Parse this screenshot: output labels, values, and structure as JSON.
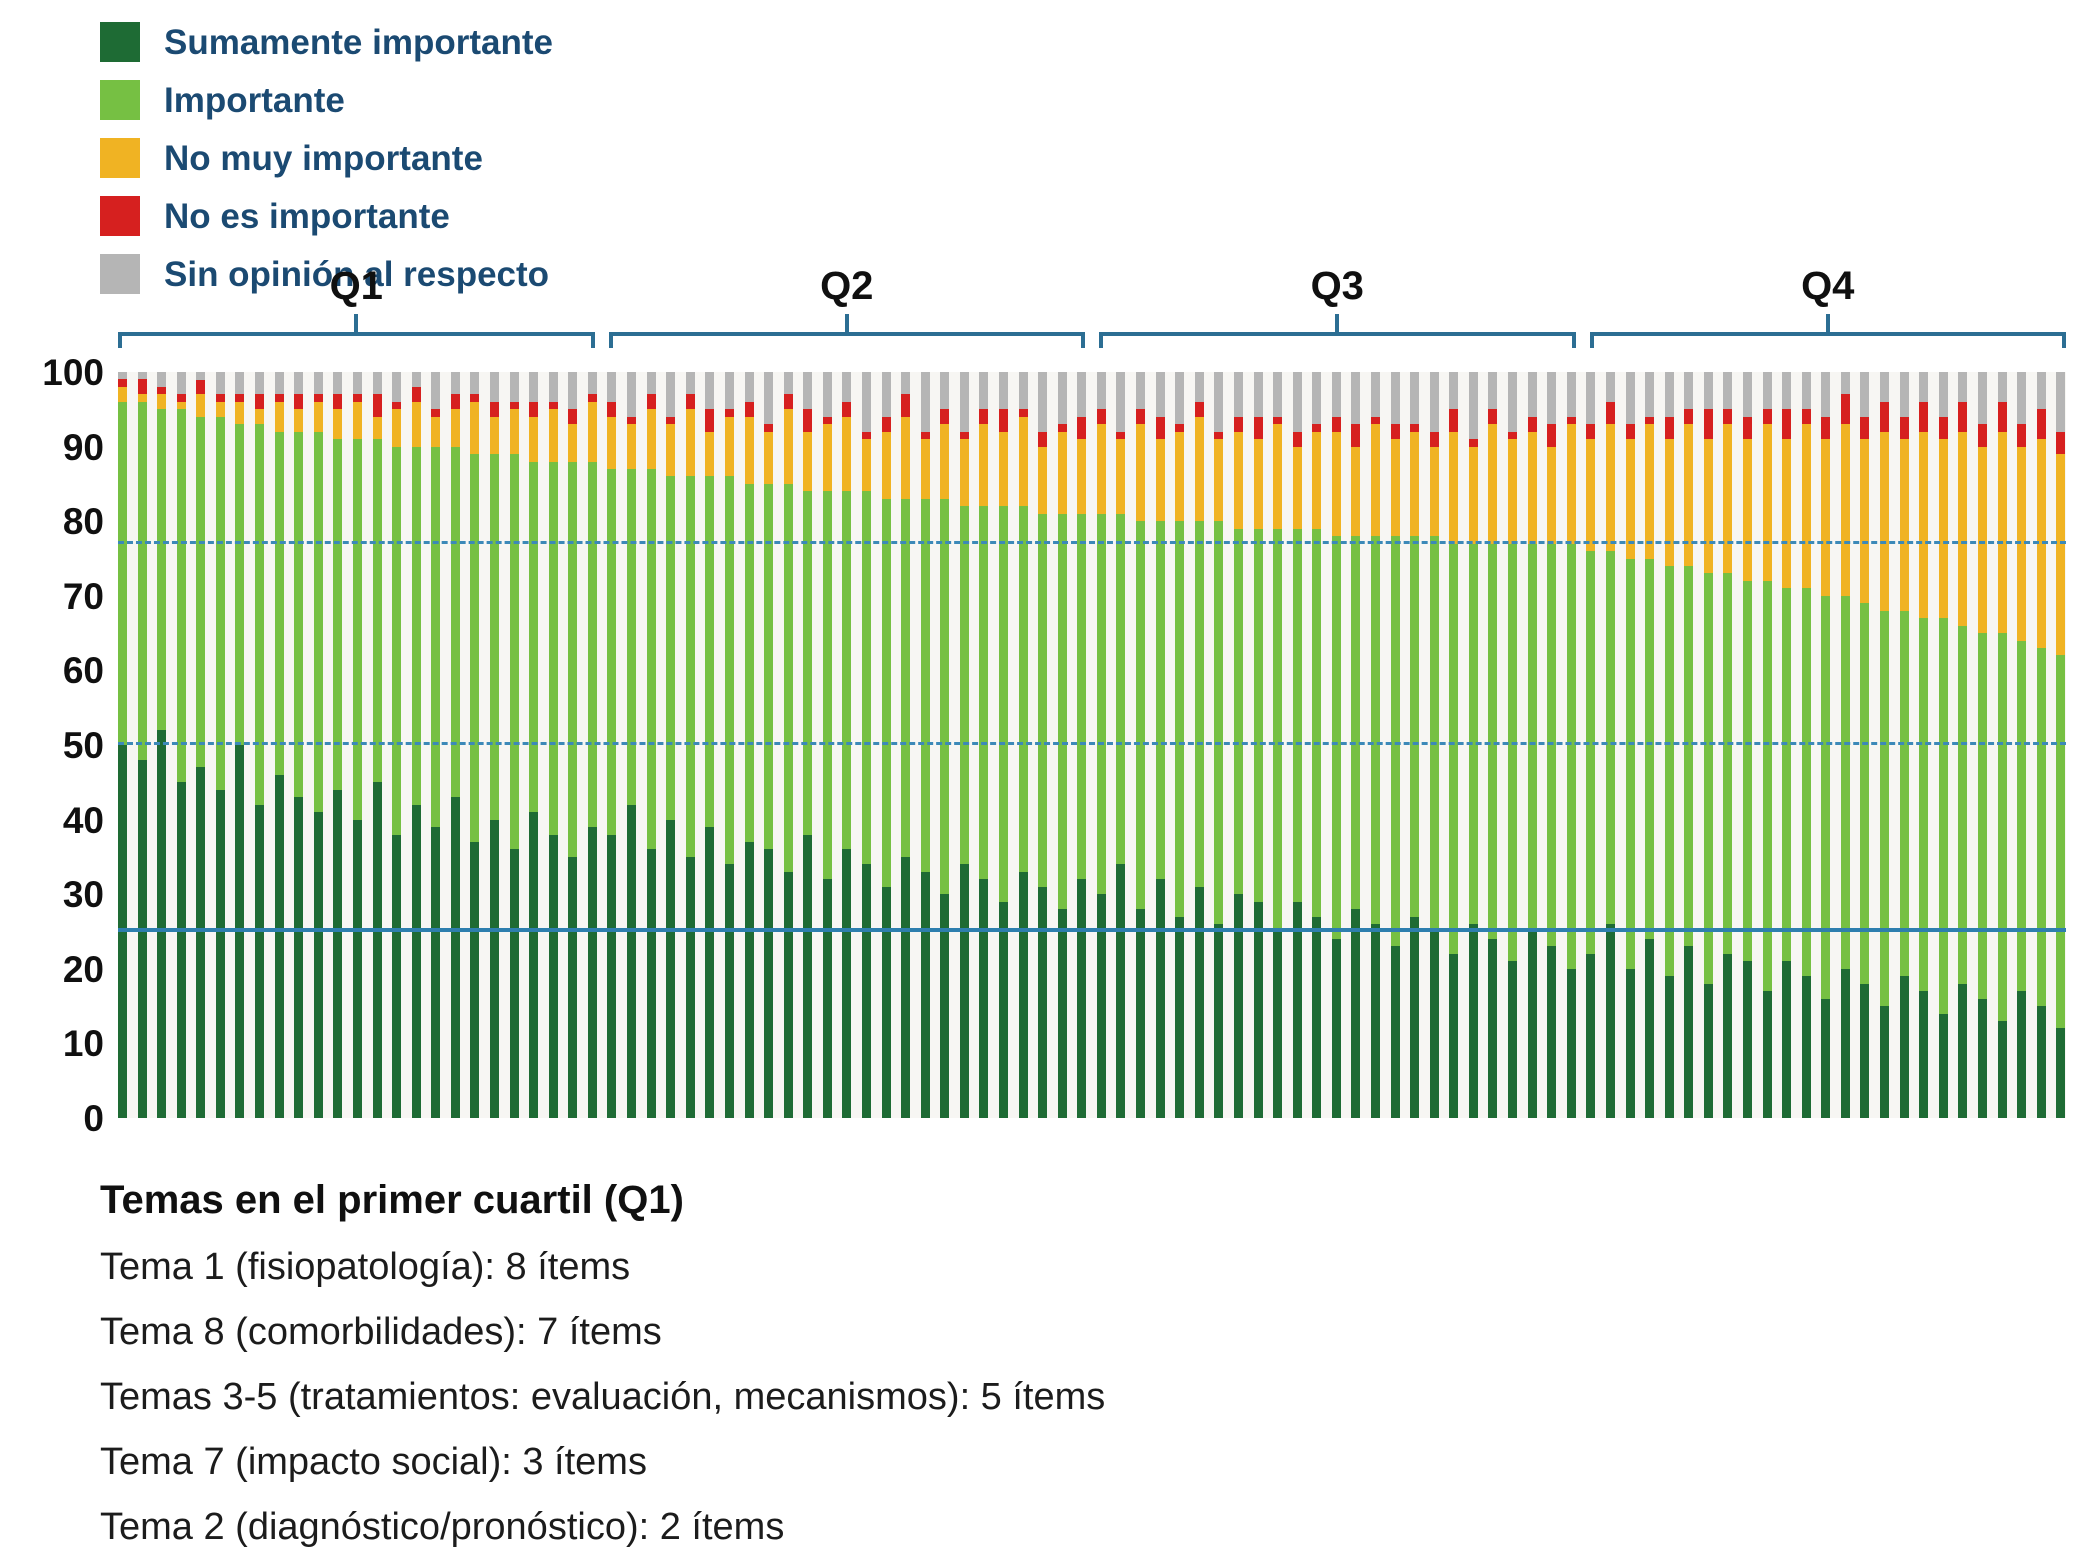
{
  "legend": {
    "items": [
      {
        "label": "Sumamente importante",
        "color": "#1e6b34"
      },
      {
        "label": "Importante",
        "color": "#76c043"
      },
      {
        "label": "No muy importante",
        "color": "#f0b323"
      },
      {
        "label": "No es importante",
        "color": "#d6201f"
      },
      {
        "label": "Sin opinión al respecto",
        "color": "#b5b5b5"
      }
    ]
  },
  "chart_data": {
    "type": "bar",
    "stacked": true,
    "unit": "percent",
    "n_bars": 100,
    "bars_per_quartile": 25,
    "quartiles": [
      "Q1",
      "Q2",
      "Q3",
      "Q4"
    ],
    "series_order": [
      "Sumamente importante",
      "Importante",
      "No muy importante",
      "No es importante",
      "Sin opinión al respecto"
    ],
    "ylim": [
      0,
      100
    ],
    "y_ticks": [
      0,
      10,
      20,
      30,
      40,
      50,
      60,
      70,
      80,
      90,
      100
    ],
    "reference_lines": [
      {
        "y": 77,
        "style": "dashed",
        "color": "#3c89b8"
      },
      {
        "y": 50,
        "style": "dashed",
        "color": "#3c89b8"
      },
      {
        "y": 25,
        "style": "solid",
        "color": "#2e7fae"
      }
    ],
    "bars": [
      [
        50,
        46,
        2,
        1,
        1
      ],
      [
        48,
        48,
        1,
        2,
        1
      ],
      [
        52,
        43,
        2,
        1,
        2
      ],
      [
        45,
        50,
        1,
        1,
        3
      ],
      [
        47,
        47,
        3,
        2,
        1
      ],
      [
        44,
        50,
        2,
        1,
        3
      ],
      [
        50,
        43,
        3,
        1,
        3
      ],
      [
        42,
        51,
        2,
        2,
        3
      ],
      [
        46,
        46,
        4,
        1,
        3
      ],
      [
        43,
        49,
        3,
        2,
        3
      ],
      [
        41,
        51,
        4,
        1,
        3
      ],
      [
        44,
        47,
        4,
        2,
        3
      ],
      [
        40,
        51,
        5,
        1,
        3
      ],
      [
        45,
        46,
        3,
        3,
        3
      ],
      [
        38,
        52,
        5,
        1,
        4
      ],
      [
        42,
        48,
        6,
        2,
        2
      ],
      [
        39,
        51,
        4,
        1,
        5
      ],
      [
        43,
        47,
        5,
        2,
        3
      ],
      [
        37,
        52,
        7,
        1,
        3
      ],
      [
        40,
        49,
        5,
        2,
        4
      ],
      [
        36,
        53,
        6,
        1,
        4
      ],
      [
        41,
        47,
        6,
        2,
        4
      ],
      [
        38,
        50,
        7,
        1,
        4
      ],
      [
        35,
        53,
        5,
        2,
        5
      ],
      [
        39,
        49,
        8,
        1,
        3
      ],
      [
        38,
        49,
        7,
        2,
        4
      ],
      [
        42,
        45,
        6,
        1,
        6
      ],
      [
        36,
        51,
        8,
        2,
        3
      ],
      [
        40,
        46,
        7,
        1,
        6
      ],
      [
        35,
        51,
        9,
        2,
        3
      ],
      [
        39,
        47,
        6,
        3,
        5
      ],
      [
        34,
        52,
        8,
        1,
        5
      ],
      [
        37,
        48,
        9,
        2,
        4
      ],
      [
        36,
        49,
        7,
        1,
        7
      ],
      [
        33,
        52,
        10,
        2,
        3
      ],
      [
        38,
        46,
        8,
        3,
        5
      ],
      [
        32,
        52,
        9,
        1,
        6
      ],
      [
        36,
        48,
        10,
        2,
        4
      ],
      [
        34,
        50,
        7,
        1,
        8
      ],
      [
        31,
        52,
        9,
        2,
        6
      ],
      [
        35,
        48,
        11,
        3,
        3
      ],
      [
        33,
        50,
        8,
        1,
        8
      ],
      [
        30,
        53,
        10,
        2,
        5
      ],
      [
        34,
        48,
        9,
        1,
        8
      ],
      [
        32,
        50,
        11,
        2,
        5
      ],
      [
        29,
        53,
        10,
        3,
        5
      ],
      [
        33,
        49,
        12,
        1,
        5
      ],
      [
        31,
        50,
        9,
        2,
        8
      ],
      [
        28,
        53,
        11,
        1,
        7
      ],
      [
        32,
        49,
        10,
        3,
        6
      ],
      [
        30,
        51,
        12,
        2,
        5
      ],
      [
        34,
        47,
        10,
        1,
        8
      ],
      [
        28,
        52,
        13,
        2,
        5
      ],
      [
        32,
        48,
        11,
        3,
        6
      ],
      [
        27,
        53,
        12,
        1,
        7
      ],
      [
        31,
        49,
        14,
        2,
        4
      ],
      [
        26,
        54,
        11,
        1,
        8
      ],
      [
        30,
        49,
        13,
        2,
        6
      ],
      [
        29,
        50,
        12,
        3,
        6
      ],
      [
        25,
        54,
        14,
        1,
        6
      ],
      [
        29,
        50,
        11,
        2,
        8
      ],
      [
        27,
        52,
        13,
        1,
        7
      ],
      [
        24,
        54,
        14,
        2,
        6
      ],
      [
        28,
        50,
        12,
        3,
        7
      ],
      [
        26,
        52,
        15,
        1,
        6
      ],
      [
        23,
        55,
        13,
        2,
        7
      ],
      [
        27,
        51,
        14,
        1,
        7
      ],
      [
        25,
        53,
        12,
        2,
        8
      ],
      [
        22,
        55,
        15,
        3,
        5
      ],
      [
        26,
        51,
        13,
        1,
        9
      ],
      [
        24,
        53,
        16,
        2,
        5
      ],
      [
        21,
        56,
        14,
        1,
        8
      ],
      [
        25,
        52,
        15,
        2,
        6
      ],
      [
        23,
        54,
        13,
        3,
        7
      ],
      [
        20,
        57,
        16,
        1,
        6
      ],
      [
        22,
        54,
        15,
        2,
        7
      ],
      [
        26,
        50,
        17,
        3,
        4
      ],
      [
        20,
        55,
        16,
        2,
        7
      ],
      [
        24,
        51,
        18,
        1,
        6
      ],
      [
        19,
        55,
        17,
        3,
        6
      ],
      [
        23,
        51,
        19,
        2,
        5
      ],
      [
        18,
        55,
        18,
        4,
        5
      ],
      [
        22,
        51,
        20,
        2,
        5
      ],
      [
        21,
        51,
        19,
        3,
        6
      ],
      [
        17,
        55,
        21,
        2,
        5
      ],
      [
        21,
        50,
        20,
        4,
        5
      ],
      [
        19,
        52,
        22,
        2,
        5
      ],
      [
        16,
        54,
        21,
        3,
        6
      ],
      [
        20,
        50,
        23,
        4,
        3
      ],
      [
        18,
        51,
        22,
        3,
        6
      ],
      [
        15,
        53,
        24,
        4,
        4
      ],
      [
        19,
        49,
        23,
        3,
        6
      ],
      [
        17,
        50,
        25,
        4,
        4
      ],
      [
        14,
        53,
        24,
        3,
        6
      ],
      [
        18,
        48,
        26,
        4,
        4
      ],
      [
        16,
        49,
        25,
        3,
        7
      ],
      [
        13,
        52,
        27,
        4,
        4
      ],
      [
        17,
        47,
        26,
        3,
        7
      ],
      [
        15,
        48,
        28,
        4,
        5
      ],
      [
        12,
        50,
        27,
        3,
        8
      ]
    ]
  },
  "footer": {
    "title": "Temas en el primer cuartil (Q1)",
    "lines": [
      "Tema 1 (fisiopatología): 8 ítems",
      "Tema 8 (comorbilidades): 7 ítems",
      "Temas 3-5 (tratamientos: evaluación, mecanismos): 5 ítems",
      "Tema 7 (impacto social): 3 ítems",
      "Tema 2 (diagnóstico/pronóstico): 2 ítems"
    ]
  }
}
